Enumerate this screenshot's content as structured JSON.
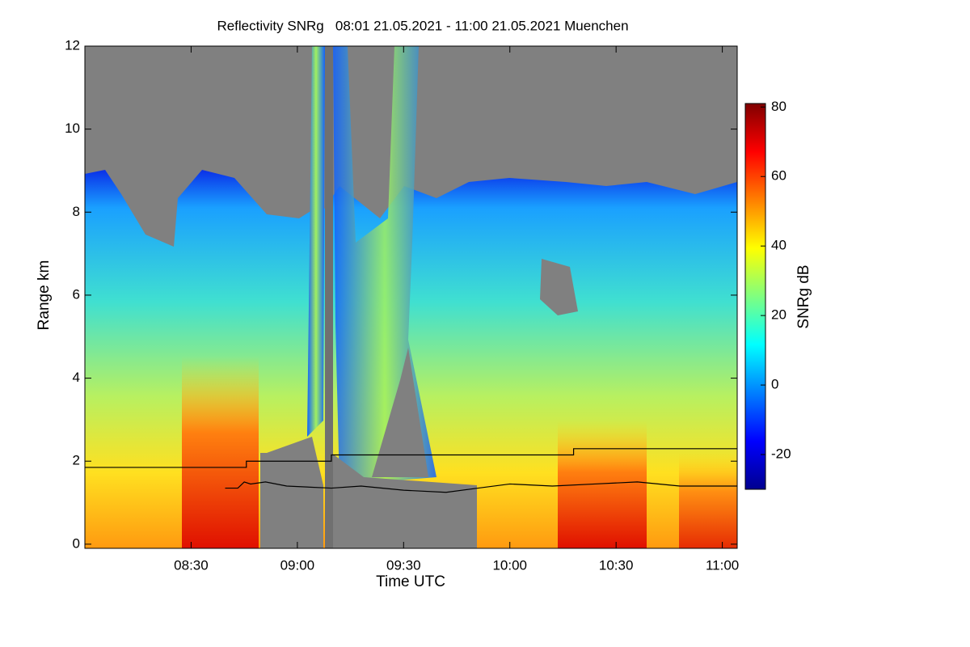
{
  "chart_data": {
    "type": "heatmap",
    "title": "Reflectivity SNRg   08:01 21.05.2021 - 11:00 21.05.2021 Muenchen",
    "x_label": "Time UTC",
    "y_label": "Range km",
    "colorbar_label": "SNRg dB",
    "xlim": [
      8.0,
      11.07
    ],
    "ylim": [
      -0.1,
      12
    ],
    "xticks": [
      {
        "value": 8.5,
        "label": "08:30"
      },
      {
        "value": 9.0,
        "label": "09:00"
      },
      {
        "value": 9.5,
        "label": "09:30"
      },
      {
        "value": 10.0,
        "label": "10:00"
      },
      {
        "value": 10.5,
        "label": "10:30"
      },
      {
        "value": 11.0,
        "label": "11:00"
      }
    ],
    "yticks": [
      0,
      2,
      4,
      6,
      8,
      10,
      12
    ],
    "clim": [
      -30,
      81
    ],
    "cticks": [
      80,
      60,
      40,
      20,
      0,
      -20
    ],
    "colormap": "jet",
    "series": [
      {
        "color": "#000000",
        "x": [
          8.0,
          8.76,
          8.76,
          9.16,
          9.16,
          10.3,
          10.3,
          11.07
        ],
        "values": [
          1.85,
          1.85,
          2.0,
          2.0,
          2.15,
          2.15,
          2.3,
          2.3
        ]
      },
      {
        "color": "#000000",
        "x": [
          8.66,
          8.72,
          8.75,
          8.78,
          8.85,
          8.95,
          9.16,
          9.3,
          9.5,
          9.7,
          9.85,
          10.0,
          10.2,
          10.4,
          10.6,
          10.8,
          11.07
        ],
        "values": [
          1.35,
          1.35,
          1.5,
          1.45,
          1.5,
          1.4,
          1.35,
          1.4,
          1.3,
          1.25,
          1.35,
          1.45,
          1.4,
          1.45,
          1.5,
          1.4,
          1.4
        ]
      }
    ]
  }
}
